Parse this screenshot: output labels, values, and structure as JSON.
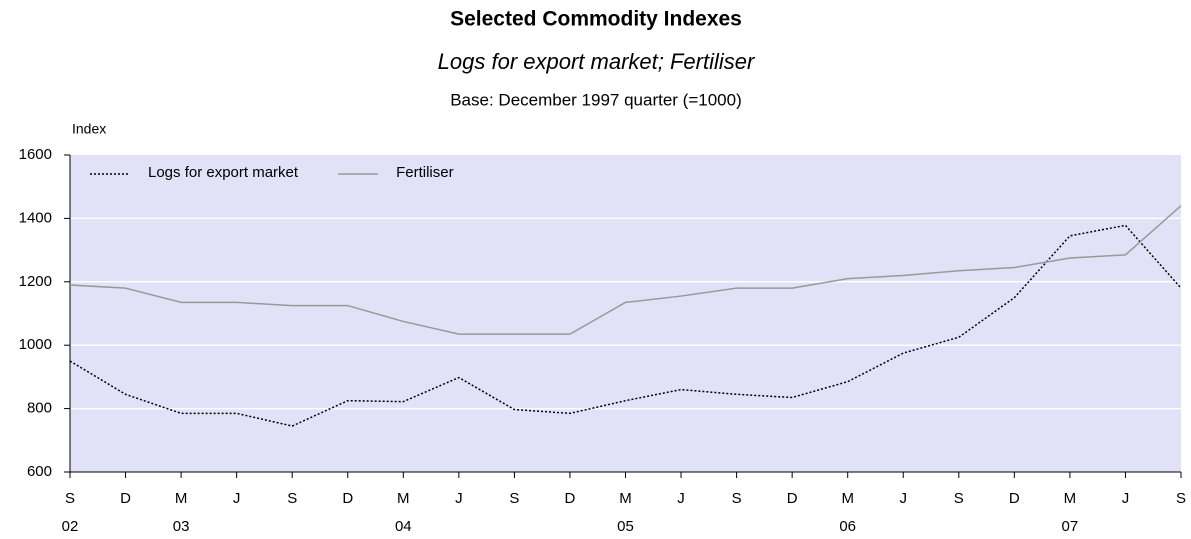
{
  "chart_data": {
    "type": "line",
    "title": "Selected Commodity Indexes",
    "subtitle": "Logs for export market; Fertiliser",
    "note": "Base: December 1997 quarter (=1000)",
    "y_label": "Index",
    "categories": [
      "S",
      "D",
      "M",
      "J",
      "S",
      "D",
      "M",
      "J",
      "S",
      "D",
      "M",
      "J",
      "S",
      "D",
      "M",
      "J",
      "S",
      "D",
      "M",
      "J",
      "S"
    ],
    "years": [
      "02",
      null,
      "03",
      null,
      null,
      null,
      "04",
      null,
      null,
      null,
      "05",
      null,
      null,
      null,
      "06",
      null,
      null,
      null,
      "07",
      null,
      null
    ],
    "series": [
      {
        "name": "Logs for export market",
        "color": "#000000",
        "dash": "dotted",
        "values": [
          950,
          845,
          785,
          785,
          745,
          825,
          822,
          898,
          797,
          785,
          825,
          860,
          845,
          835,
          885,
          975,
          1025,
          1150,
          1345,
          1378,
          1180
        ]
      },
      {
        "name": "Fertiliser",
        "color": "#999999",
        "dash": "solid",
        "values": [
          1190,
          1180,
          1135,
          1135,
          1125,
          1125,
          1075,
          1035,
          1035,
          1035,
          1135,
          1155,
          1180,
          1180,
          1210,
          1220,
          1235,
          1245,
          1275,
          1285,
          1440
        ]
      }
    ],
    "ylim": [
      600,
      1600
    ],
    "yticks": [
      600,
      800,
      1000,
      1200,
      1400,
      1600
    ],
    "grid": true,
    "legend": "upper left",
    "plot_color": "#e1e1f8"
  }
}
